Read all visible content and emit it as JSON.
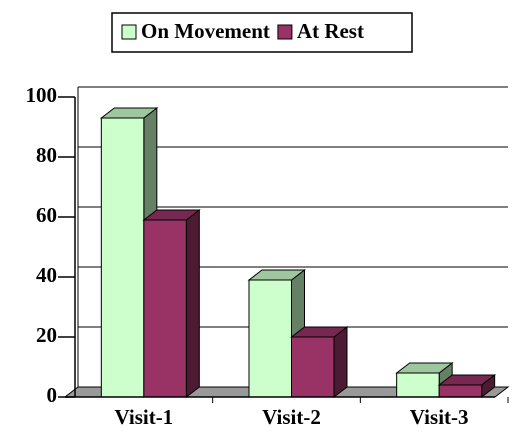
{
  "chart_data": {
    "type": "bar3d",
    "categories": [
      "Visit-1",
      "Visit-2",
      "Visit-3"
    ],
    "series": [
      {
        "name": "On Movement",
        "color": "#ccffcc",
        "values": [
          93,
          39,
          8
        ]
      },
      {
        "name": "At Rest",
        "color": "#993366",
        "values": [
          59,
          20,
          4
        ]
      }
    ],
    "ylim": [
      0,
      100
    ],
    "yticks": [
      0,
      20,
      40,
      60,
      80,
      100
    ],
    "grid": true,
    "legend": "top"
  }
}
